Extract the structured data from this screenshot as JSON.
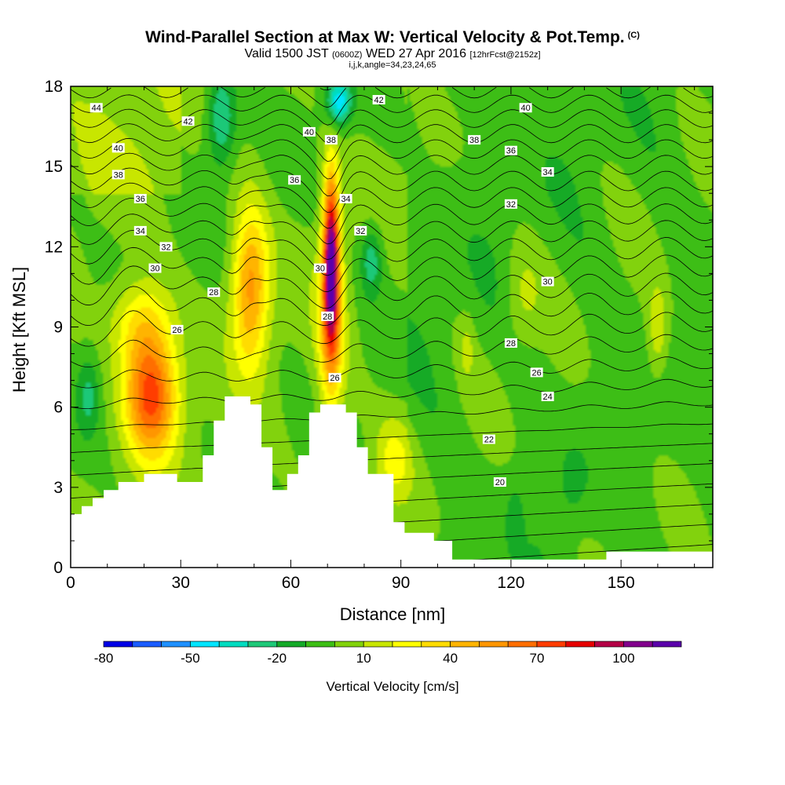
{
  "header": {
    "title": "Wind-Parallel Section at Max W: Vertical Velocity & Pot.Temp.",
    "copyright": "(C)",
    "valid_main": "Valid 1500 JST",
    "valid_z": "(0600Z)",
    "valid_date": "WED 27 Apr 2016",
    "forecast": "[12hrFcst@2152z]",
    "indices": "i,j,k,angle=34,23,24,65"
  },
  "chart_data": {
    "type": "heatmap",
    "xlabel": "Distance [nm]",
    "ylabel": "Height [Kft MSL]",
    "xlim": [
      0,
      175
    ],
    "ylim": [
      0,
      18
    ],
    "xticks": [
      0,
      30,
      60,
      90,
      120,
      150
    ],
    "yticks": [
      0,
      3,
      6,
      9,
      12,
      15,
      18
    ],
    "colorbar": {
      "label": "Vertical Velocity [cm/s]",
      "tick_labels": [
        "-80",
        "-50",
        "-20",
        "10",
        "40",
        "70",
        "100"
      ],
      "tick_values": [
        -80,
        -50,
        -20,
        10,
        40,
        70,
        100
      ],
      "min": -80,
      "step": 10,
      "colors": [
        "#0000e6",
        "#1a5cff",
        "#1e90ff",
        "#00e5ff",
        "#00dcc0",
        "#1ec878",
        "#14aa28",
        "#3cbe14",
        "#82d20a",
        "#c8e600",
        "#ffff00",
        "#ffdc00",
        "#ffb400",
        "#ff9600",
        "#ff6e00",
        "#ff3c00",
        "#e60000",
        "#b40046",
        "#82008c",
        "#5a00aa"
      ]
    },
    "velocity_features": [
      {
        "x": 22,
        "y": 6.5,
        "peak": 75
      },
      {
        "x": 49,
        "y": 10.5,
        "peak": 55
      },
      {
        "x": 71,
        "y": 11.5,
        "peak": 110
      },
      {
        "x": 41,
        "y": 16.8,
        "peak": -30
      },
      {
        "x": 73,
        "y": 17.4,
        "peak": -40
      },
      {
        "x": 82,
        "y": 11.5,
        "peak": -25
      }
    ],
    "theta_contour_labels": [
      {
        "text": "44",
        "x": 7,
        "y": 17.2
      },
      {
        "text": "42",
        "x": 32,
        "y": 16.7
      },
      {
        "text": "42",
        "x": 84,
        "y": 17.5
      },
      {
        "text": "40",
        "x": 13,
        "y": 15.7
      },
      {
        "text": "40",
        "x": 65,
        "y": 16.3
      },
      {
        "text": "40",
        "x": 124,
        "y": 17.2
      },
      {
        "text": "38",
        "x": 13,
        "y": 14.7
      },
      {
        "text": "38",
        "x": 71,
        "y": 16.0
      },
      {
        "text": "38",
        "x": 110,
        "y": 16.0
      },
      {
        "text": "36",
        "x": 19,
        "y": 13.8
      },
      {
        "text": "36",
        "x": 61,
        "y": 14.5
      },
      {
        "text": "36",
        "x": 120,
        "y": 15.6
      },
      {
        "text": "34",
        "x": 19,
        "y": 12.6
      },
      {
        "text": "34",
        "x": 75,
        "y": 13.8
      },
      {
        "text": "34",
        "x": 130,
        "y": 14.8
      },
      {
        "text": "32",
        "x": 26,
        "y": 12.0
      },
      {
        "text": "32",
        "x": 79,
        "y": 12.6
      },
      {
        "text": "32",
        "x": 120,
        "y": 13.6
      },
      {
        "text": "30",
        "x": 23,
        "y": 11.2
      },
      {
        "text": "30",
        "x": 68,
        "y": 11.2
      },
      {
        "text": "30",
        "x": 130,
        "y": 10.7
      },
      {
        "text": "28",
        "x": 39,
        "y": 10.3
      },
      {
        "text": "28",
        "x": 70,
        "y": 9.4
      },
      {
        "text": "28",
        "x": 120,
        "y": 8.4
      },
      {
        "text": "26",
        "x": 29,
        "y": 8.9
      },
      {
        "text": "26",
        "x": 72,
        "y": 7.1
      },
      {
        "text": "26",
        "x": 127,
        "y": 7.3
      },
      {
        "text": "24",
        "x": 130,
        "y": 6.4
      },
      {
        "text": "22",
        "x": 114,
        "y": 4.8
      },
      {
        "text": "20",
        "x": 117,
        "y": 3.2
      }
    ],
    "terrain": [
      [
        0,
        2.0
      ],
      [
        3,
        2.0
      ],
      [
        3,
        2.3
      ],
      [
        6,
        2.3
      ],
      [
        6,
        2.6
      ],
      [
        9,
        2.6
      ],
      [
        9,
        2.9
      ],
      [
        13,
        2.9
      ],
      [
        13,
        3.2
      ],
      [
        20,
        3.2
      ],
      [
        20,
        3.5
      ],
      [
        29,
        3.5
      ],
      [
        29,
        3.2
      ],
      [
        36,
        3.2
      ],
      [
        36,
        4.2
      ],
      [
        39,
        4.2
      ],
      [
        39,
        5.5
      ],
      [
        42,
        5.5
      ],
      [
        42,
        6.4
      ],
      [
        49,
        6.4
      ],
      [
        49,
        6.1
      ],
      [
        52,
        6.1
      ],
      [
        52,
        4.5
      ],
      [
        55,
        4.5
      ],
      [
        55,
        2.9
      ],
      [
        59,
        2.9
      ],
      [
        59,
        3.5
      ],
      [
        62,
        3.5
      ],
      [
        62,
        4.2
      ],
      [
        65,
        4.2
      ],
      [
        65,
        5.8
      ],
      [
        68,
        5.8
      ],
      [
        68,
        6.1
      ],
      [
        75,
        6.1
      ],
      [
        75,
        5.8
      ],
      [
        78,
        5.8
      ],
      [
        78,
        4.5
      ],
      [
        81,
        4.5
      ],
      [
        81,
        3.5
      ],
      [
        88,
        3.5
      ],
      [
        88,
        1.7
      ],
      [
        91,
        1.7
      ],
      [
        91,
        1.3
      ],
      [
        99,
        1.3
      ],
      [
        99,
        1.0
      ],
      [
        104,
        1.0
      ],
      [
        104,
        0.3
      ],
      [
        146,
        0.3
      ],
      [
        146,
        0.6
      ],
      [
        175,
        0.6
      ],
      [
        175,
        0
      ],
      [
        0,
        0
      ]
    ]
  }
}
